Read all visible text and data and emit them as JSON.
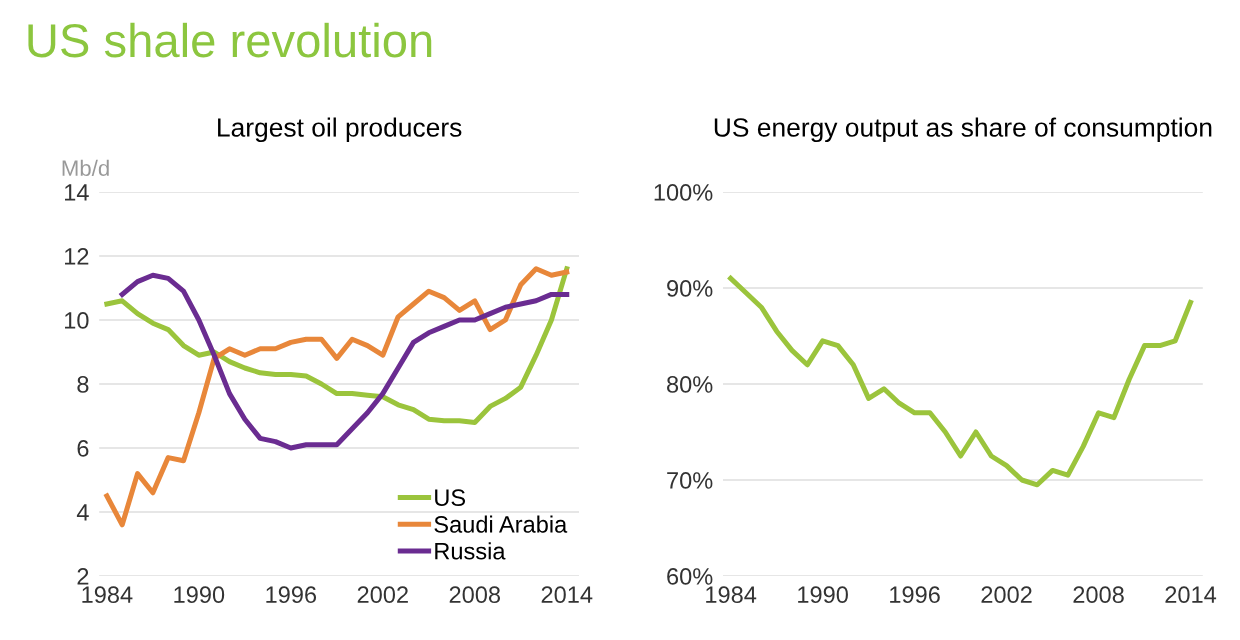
{
  "chart_data": [
    {
      "type": "line",
      "title": "US shale revolution",
      "subtitle": "Largest oil producers",
      "ylabel": "Mb/d",
      "x": [
        1984,
        1985,
        1986,
        1987,
        1988,
        1989,
        1990,
        1991,
        1992,
        1993,
        1994,
        1995,
        1996,
        1997,
        1998,
        1999,
        2000,
        2001,
        2002,
        2003,
        2004,
        2005,
        2006,
        2007,
        2008,
        2009,
        2010,
        2011,
        2012,
        2013,
        2014
      ],
      "series": [
        {
          "name": "US",
          "color": "#9bc43c",
          "values": [
            10.5,
            10.6,
            10.2,
            9.9,
            9.7,
            9.2,
            8.9,
            9.0,
            8.7,
            8.5,
            8.35,
            8.3,
            8.3,
            8.25,
            8.0,
            7.7,
            7.7,
            7.65,
            7.6,
            7.35,
            7.2,
            6.9,
            6.85,
            6.85,
            6.8,
            7.3,
            7.55,
            7.9,
            8.9,
            10.0,
            11.6
          ]
        },
        {
          "name": "Saudi Arabia",
          "color": "#e8873a",
          "values": [
            4.5,
            3.6,
            5.2,
            4.6,
            5.7,
            5.6,
            7.1,
            8.8,
            9.1,
            8.9,
            9.1,
            9.1,
            9.3,
            9.4,
            9.4,
            8.8,
            9.4,
            9.2,
            8.9,
            10.1,
            10.5,
            10.9,
            10.7,
            10.3,
            10.6,
            9.7,
            10.0,
            11.1,
            11.6,
            11.4,
            11.5
          ]
        },
        {
          "name": "Russia",
          "color": "#6a2c91",
          "values": [
            null,
            10.8,
            11.2,
            11.4,
            11.3,
            10.9,
            10.0,
            8.9,
            7.7,
            6.9,
            6.3,
            6.2,
            6.0,
            6.1,
            6.1,
            6.1,
            6.6,
            7.1,
            7.7,
            8.5,
            9.3,
            9.6,
            9.8,
            10.0,
            10.0,
            10.2,
            10.4,
            10.5,
            10.6,
            10.8,
            10.8
          ]
        }
      ],
      "xlim": [
        1983.5,
        2014.8
      ],
      "xticks": [
        1984,
        1990,
        1996,
        2002,
        2008,
        2014
      ],
      "ylim": [
        2,
        14
      ],
      "yticks": [
        2,
        4,
        6,
        8,
        10,
        12,
        14
      ],
      "grid": "y",
      "legend": "bottom right"
    },
    {
      "type": "line",
      "title": "US energy output as share of consumption",
      "x": [
        1984,
        1985,
        1986,
        1987,
        1988,
        1989,
        1990,
        1991,
        1992,
        1993,
        1994,
        1995,
        1996,
        1997,
        1998,
        1999,
        2000,
        2001,
        2002,
        2003,
        2004,
        2005,
        2006,
        2007,
        2008,
        2009,
        2010,
        2011,
        2012,
        2013,
        2014
      ],
      "series": [
        {
          "color": "#9bc43c",
          "values": [
            91,
            89.5,
            88,
            85.5,
            83.5,
            82,
            84.5,
            84,
            82,
            78.5,
            79.5,
            78,
            77,
            77,
            75,
            72.5,
            75,
            72.5,
            71.5,
            70,
            69.5,
            71,
            70.5,
            73.5,
            77,
            76.5,
            80.5,
            84,
            84,
            84.5,
            88.5
          ]
        }
      ],
      "xlim": [
        1983.5,
        2014.8
      ],
      "xticks": [
        1984,
        1990,
        1996,
        2002,
        2008,
        2014
      ],
      "ylim": [
        60,
        100
      ],
      "yticks": [
        {
          "value": 60,
          "label": "60%"
        },
        {
          "value": 70,
          "label": "70%"
        },
        {
          "value": 80,
          "label": "80%"
        },
        {
          "value": 90,
          "label": "90%"
        },
        {
          "value": 100,
          "label": "100%"
        }
      ],
      "grid": "y"
    }
  ]
}
